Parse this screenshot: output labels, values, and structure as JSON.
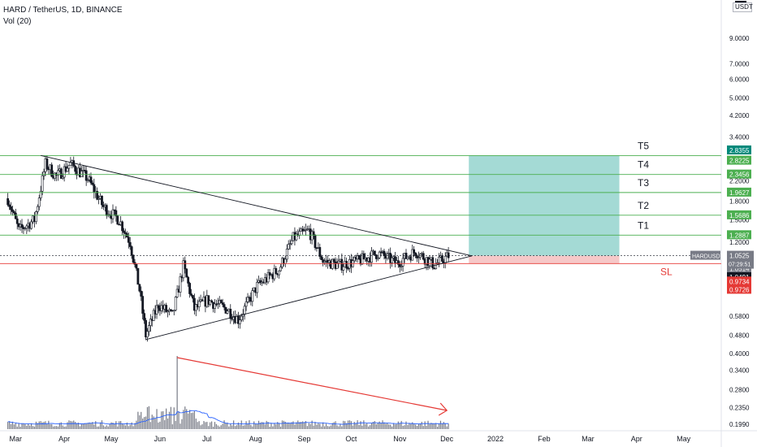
{
  "header": {
    "symbol_line": "HARD / TetherUS, 1D, BINANCE",
    "volume_line": "Vol (20)",
    "currency": "USDT"
  },
  "colors": {
    "up": "#26a69a",
    "down": "#ef5350",
    "candle": "#131722",
    "target_line": "#4caf50",
    "stop_line": "#e53935",
    "profit_zone": "#26a69a",
    "loss_zone": "#ef9a9a",
    "volume_ma": "#2962ff",
    "volume_bar": "#787b86",
    "arrow": "#e53935"
  },
  "chart_data": {
    "type": "candlestick",
    "y_scale": "log",
    "ylim": [
      0.19,
      11
    ],
    "x_tick_labels": [
      "Mar",
      "Apr",
      "May",
      "Jun",
      "Jul",
      "Aug",
      "Sep",
      "Oct",
      "Nov",
      "Dec",
      "2022",
      "Feb",
      "Mar",
      "Apr",
      "May"
    ],
    "y_tick_labels": [
      "9.0000",
      "7.0000",
      "6.0000",
      "5.0000",
      "4.2000",
      "3.4000",
      "2.2000",
      "1.8000",
      "1.5000",
      "1.2000",
      "0.5800",
      "0.4800",
      "0.4000",
      "0.3400",
      "0.2800",
      "0.2350",
      "0.1990"
    ],
    "y_tick_values": [
      9.0,
      7.0,
      6.0,
      5.0,
      4.2,
      3.4,
      2.2,
      1.8,
      1.5,
      1.2,
      0.58,
      0.48,
      0.4,
      0.34,
      0.28,
      0.235,
      0.199
    ],
    "price_path": [
      {
        "date": "2021-02-24",
        "price": 1.85
      },
      {
        "date": "2021-03-03",
        "price": 1.35
      },
      {
        "date": "2021-03-13",
        "price": 1.5
      },
      {
        "date": "2021-03-20",
        "price": 2.6
      },
      {
        "date": "2021-03-27",
        "price": 2.3
      },
      {
        "date": "2021-04-05",
        "price": 2.6
      },
      {
        "date": "2021-04-16",
        "price": 2.25
      },
      {
        "date": "2021-04-26",
        "price": 1.7
      },
      {
        "date": "2021-05-06",
        "price": 1.5
      },
      {
        "date": "2021-05-13",
        "price": 1.2
      },
      {
        "date": "2021-05-19",
        "price": 0.75
      },
      {
        "date": "2021-05-23",
        "price": 0.48
      },
      {
        "date": "2021-05-31",
        "price": 0.65
      },
      {
        "date": "2021-06-09",
        "price": 0.58
      },
      {
        "date": "2021-06-16",
        "price": 0.95
      },
      {
        "date": "2021-06-23",
        "price": 0.62
      },
      {
        "date": "2021-07-01",
        "price": 0.68
      },
      {
        "date": "2021-07-14",
        "price": 0.62
      },
      {
        "date": "2021-07-21",
        "price": 0.56
      },
      {
        "date": "2021-08-02",
        "price": 0.78
      },
      {
        "date": "2021-08-16",
        "price": 0.92
      },
      {
        "date": "2021-08-25",
        "price": 1.25
      },
      {
        "date": "2021-09-04",
        "price": 1.35
      },
      {
        "date": "2021-09-13",
        "price": 1.0
      },
      {
        "date": "2021-09-23",
        "price": 0.96
      },
      {
        "date": "2021-10-06",
        "price": 1.0
      },
      {
        "date": "2021-10-18",
        "price": 1.08
      },
      {
        "date": "2021-10-30",
        "price": 0.98
      },
      {
        "date": "2021-11-11",
        "price": 1.1
      },
      {
        "date": "2021-11-23",
        "price": 0.96
      },
      {
        "date": "2021-12-02",
        "price": 1.05
      }
    ],
    "triangle": {
      "upper_line": [
        {
          "date": "2021-03-17",
          "price": 2.83
        },
        {
          "date": "2021-12-17",
          "price": 1.05
        }
      ],
      "lower_line": [
        {
          "date": "2021-05-23",
          "price": 0.46
        },
        {
          "date": "2021-12-17",
          "price": 1.05
        }
      ]
    },
    "targets": [
      {
        "label": "T1",
        "price": 1.2887
      },
      {
        "label": "T2",
        "price": 1.5686
      },
      {
        "label": "T3",
        "price": 1.9627
      },
      {
        "label": "T4",
        "price": 2.3456
      },
      {
        "label": "T5",
        "price": 2.8225
      }
    ],
    "stop_loss": {
      "label": "SL",
      "price": 0.9734
    },
    "position": {
      "entry": 1.0525,
      "take_profit": 2.8355,
      "stop": 0.9726,
      "start_date": "2021-12-15",
      "end_date": "2022-03-21"
    },
    "price_labels": [
      {
        "text": "2.8355",
        "price": 2.8355,
        "kind": "take-profit"
      },
      {
        "text": "2.8225",
        "price": 2.8225,
        "kind": "target"
      },
      {
        "text": "2.3456",
        "price": 2.3456,
        "kind": "target"
      },
      {
        "text": "1.9627",
        "price": 1.9627,
        "kind": "target"
      },
      {
        "text": "1.5686",
        "price": 1.5686,
        "kind": "target"
      },
      {
        "text": "1.2887",
        "price": 1.2887,
        "kind": "target"
      },
      {
        "text": "1.0514",
        "price": 1.0514,
        "kind": "neutral"
      },
      {
        "text": "1.0491",
        "price": 1.0491,
        "kind": "dark"
      },
      {
        "text": "0.9734",
        "price": 0.9734,
        "kind": "stop"
      },
      {
        "text": "0.9726",
        "price": 0.9726,
        "kind": "stop"
      }
    ],
    "current_price": {
      "symbol": "HARDUSDT",
      "price_text": "1.0525",
      "countdown": "07:29:51"
    },
    "volume_arrow": {
      "from_date": "2021-06-12",
      "to_date": "2021-12-01",
      "trend": "down"
    }
  }
}
